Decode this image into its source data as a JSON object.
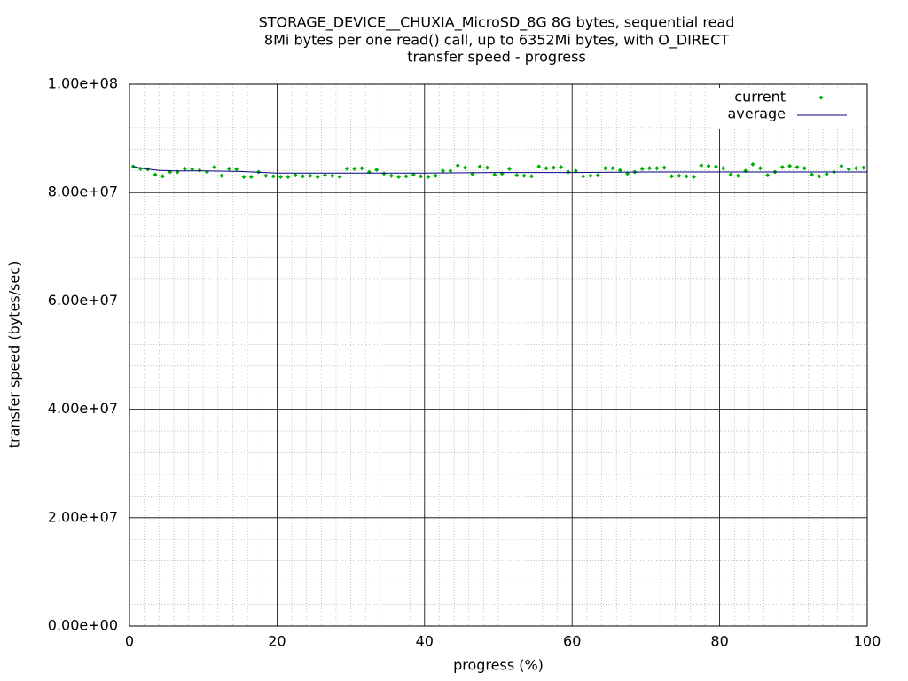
{
  "chart_data": {
    "type": "scatter",
    "title": [
      "STORAGE_DEVICE__CHUXIA_MicroSD_8G 8G bytes, sequential read",
      "8Mi bytes per one read() call, up to 6352Mi bytes, with O_DIRECT",
      "transfer speed - progress"
    ],
    "xlabel": "progress (%)",
    "ylabel": "transfer speed (bytes/sec)",
    "xlim": [
      0,
      100
    ],
    "ylim": [
      0,
      100000000
    ],
    "xticks": [
      0,
      20,
      40,
      60,
      80,
      100
    ],
    "yticks": [
      {
        "value": 0,
        "label": "0.00e+00"
      },
      {
        "value": 20000000,
        "label": "2.00e+07"
      },
      {
        "value": 40000000,
        "label": "4.00e+07"
      },
      {
        "value": 60000000,
        "label": "6.00e+07"
      },
      {
        "value": 80000000,
        "label": "8.00e+07"
      },
      {
        "value": 100000000,
        "label": "1.00e+08"
      }
    ],
    "grid": true,
    "legend": "top-right",
    "series": [
      {
        "name": "current",
        "color": "#00b000",
        "kind": "points",
        "x": [
          0.5,
          1.5,
          2.5,
          3.5,
          4.5,
          5.5,
          6.5,
          7.5,
          8.5,
          9.5,
          10.5,
          11.5,
          12.5,
          13.5,
          14.5,
          15.5,
          16.5,
          17.5,
          18.5,
          19.5,
          20.5,
          21.5,
          22.5,
          23.5,
          24.5,
          25.5,
          26.5,
          27.5,
          28.5,
          29.5,
          30.5,
          31.5,
          32.5,
          33.5,
          34.5,
          35.5,
          36.5,
          37.5,
          38.5,
          39.5,
          40.5,
          41.5,
          42.5,
          43.5,
          44.5,
          45.5,
          46.5,
          47.5,
          48.5,
          49.5,
          50.5,
          51.5,
          52.5,
          53.5,
          54.5,
          55.5,
          56.5,
          57.5,
          58.5,
          59.5,
          60.5,
          61.5,
          62.5,
          63.5,
          64.5,
          65.5,
          66.5,
          67.5,
          68.5,
          69.5,
          70.5,
          71.5,
          72.5,
          73.5,
          74.5,
          75.5,
          76.5,
          77.5,
          78.5,
          79.5,
          80.5,
          81.5,
          82.5,
          83.5,
          84.5,
          85.5,
          86.5,
          87.5,
          88.5,
          89.5,
          90.5,
          91.5,
          92.5,
          93.5,
          94.5,
          95.5,
          96.5,
          97.5,
          98.5,
          99.5
        ],
        "values": [
          84800000,
          84400000,
          84300000,
          83300000,
          83000000,
          83800000,
          83800000,
          84400000,
          84300000,
          84100000,
          83800000,
          84700000,
          83100000,
          84400000,
          84300000,
          82900000,
          82900000,
          83800000,
          83100000,
          83000000,
          82900000,
          82900000,
          83200000,
          83000000,
          83100000,
          82900000,
          83200000,
          83100000,
          82900000,
          84400000,
          84400000,
          84500000,
          83800000,
          84200000,
          83500000,
          83100000,
          82900000,
          83000000,
          83300000,
          83000000,
          82900000,
          83100000,
          84000000,
          84000000,
          85000000,
          84600000,
          83400000,
          84800000,
          84600000,
          83300000,
          83500000,
          84400000,
          83200000,
          83100000,
          83000000,
          84800000,
          84500000,
          84600000,
          84700000,
          83800000,
          84000000,
          83000000,
          83100000,
          83200000,
          84500000,
          84500000,
          84100000,
          83500000,
          83800000,
          84400000,
          84500000,
          84500000,
          84600000,
          83000000,
          83100000,
          83000000,
          82900000,
          85000000,
          84900000,
          84800000,
          84500000,
          83300000,
          83100000,
          84000000,
          85200000,
          84500000,
          83200000,
          83800000,
          84700000,
          84900000,
          84700000,
          84500000,
          83300000,
          83000000,
          83400000,
          83800000,
          84900000,
          84300000,
          84500000,
          84600000
        ]
      },
      {
        "name": "average",
        "color": "#000080",
        "kind": "line",
        "x": [
          0.5,
          2,
          4,
          6,
          10,
          15,
          20,
          30,
          40,
          50,
          60,
          70,
          80,
          90,
          100
        ],
        "values": [
          84800000,
          84400000,
          84100000,
          84000000,
          84000000,
          83900000,
          83600000,
          83600000,
          83600000,
          83700000,
          83700000,
          83800000,
          83800000,
          83800000,
          83800000
        ]
      }
    ]
  }
}
